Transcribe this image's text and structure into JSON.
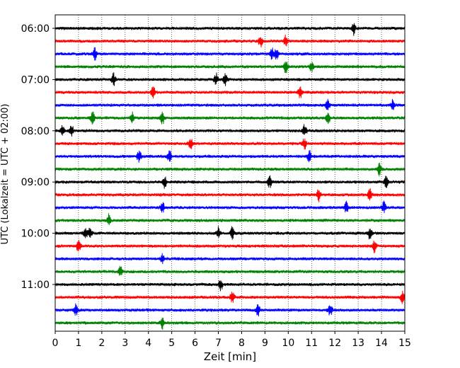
{
  "chart_data": {
    "type": "line",
    "xlabel": "Zeit  [min]",
    "ylabel": "UTC (Lokalzeit = UTC + 02:00)",
    "xlim": [
      0,
      15
    ],
    "x_ticks": [
      0,
      1,
      2,
      3,
      4,
      5,
      6,
      7,
      8,
      9,
      10,
      11,
      12,
      13,
      14,
      15
    ],
    "y_tick_labels": [
      "06:00",
      "07:00",
      "08:00",
      "09:00",
      "10:00",
      "11:00"
    ],
    "y_tick_rows": [
      0,
      4,
      8,
      12,
      16,
      20
    ],
    "row_interval_minutes": 15,
    "row_count": 24,
    "row_colors": [
      "#000000",
      "#ff0000",
      "#0000ff",
      "#008000"
    ],
    "vertical_grid": "dotted",
    "series": [
      {
        "events": [
          12.8
        ]
      },
      {
        "events": [
          8.8,
          9.9
        ]
      },
      {
        "events": [
          1.7,
          9.3,
          9.5
        ]
      },
      {
        "events": [
          9.9,
          11.0
        ]
      },
      {
        "events": [
          2.5,
          6.9,
          7.3
        ]
      },
      {
        "events": [
          4.2,
          10.5
        ]
      },
      {
        "events": [
          11.7,
          14.5
        ]
      },
      {
        "events": [
          1.6,
          3.3,
          4.6,
          11.7
        ]
      },
      {
        "events": [
          0.3,
          0.7,
          10.7
        ]
      },
      {
        "events": [
          5.8,
          10.7
        ]
      },
      {
        "events": [
          3.6,
          4.9,
          10.9
        ]
      },
      {
        "events": [
          13.9
        ]
      },
      {
        "events": [
          4.7,
          9.2,
          14.2
        ]
      },
      {
        "events": [
          11.3,
          13.5
        ]
      },
      {
        "events": [
          4.6,
          12.5,
          14.1
        ]
      },
      {
        "events": [
          2.3
        ]
      },
      {
        "events": [
          1.3,
          1.5,
          7.0,
          7.6,
          13.5
        ]
      },
      {
        "events": [
          1.0,
          13.7
        ]
      },
      {
        "events": [
          4.6
        ]
      },
      {
        "events": [
          2.8
        ]
      },
      {
        "events": [
          7.1
        ]
      },
      {
        "events": [
          7.6,
          14.9
        ]
      },
      {
        "events": [
          0.9,
          8.7,
          11.8
        ]
      },
      {
        "events": [
          4.6
        ]
      }
    ]
  }
}
